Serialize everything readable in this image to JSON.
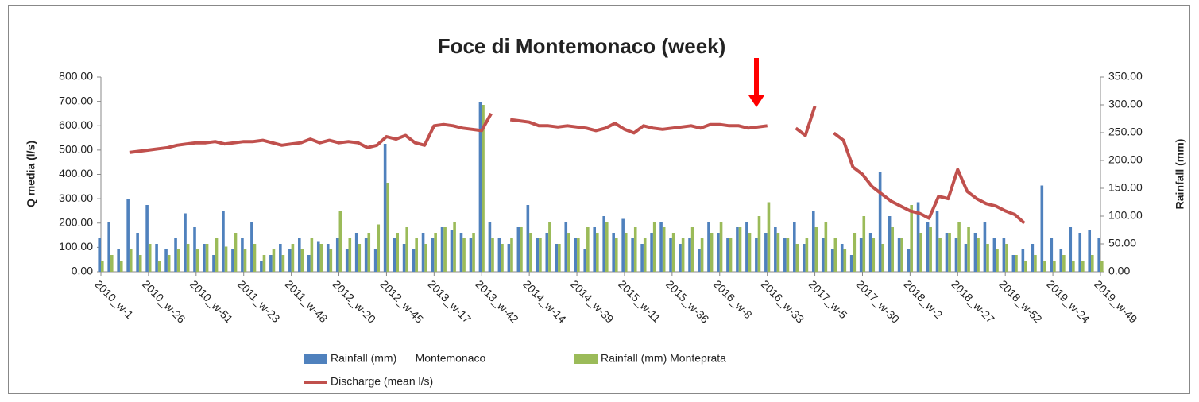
{
  "chart_data": {
    "type": "bar-line",
    "title": "Foce di Montemonaco (week)",
    "y_label": "Q media (l/s)",
    "y2_label": "Rainfall (mm)",
    "categories": [
      "2010_w-1",
      null,
      null,
      null,
      null,
      "2010_w-26",
      null,
      null,
      null,
      null,
      "2010_w-51",
      null,
      null,
      null,
      null,
      "2011_w-23",
      null,
      null,
      null,
      null,
      "2011_w-48",
      null,
      null,
      null,
      null,
      "2012_w-20",
      null,
      null,
      null,
      null,
      "2012_w-45",
      null,
      null,
      null,
      null,
      "2013_w-17",
      null,
      null,
      null,
      null,
      "2013_w-42",
      null,
      null,
      null,
      null,
      "2014_w-14",
      null,
      null,
      null,
      null,
      "2014_w-39",
      null,
      null,
      null,
      null,
      "2015_w-11",
      null,
      null,
      null,
      null,
      "2015_w-36",
      null,
      null,
      null,
      null,
      "2016_w-8",
      null,
      null,
      null,
      null,
      "2016_w-33",
      null,
      null,
      null,
      null,
      "2017_w-5",
      null,
      null,
      null,
      null,
      "2017_w-30",
      null,
      null,
      null,
      null,
      "2018_w-2",
      null,
      null,
      null,
      null,
      "2018_w-27",
      null,
      null,
      null,
      null,
      "2018_w-52",
      null,
      null,
      null,
      null,
      "2019_w-24",
      null,
      null,
      null,
      null,
      "2019_w-49"
    ],
    "series": [
      {
        "name": "Rainfall (mm)      Montemonaco",
        "color": "#4f81bd",
        "axis": "y2",
        "kind": "bar",
        "values": [
          60,
          90,
          40,
          130,
          70,
          120,
          50,
          40,
          60,
          105,
          80,
          50,
          30,
          110,
          40,
          60,
          90,
          20,
          30,
          50,
          40,
          60,
          30,
          55,
          50,
          60,
          40,
          70,
          60,
          40,
          230,
          60,
          50,
          40,
          70,
          60,
          80,
          75,
          70,
          60,
          305,
          90,
          60,
          50,
          80,
          120,
          60,
          70,
          50,
          90,
          60,
          40,
          80,
          100,
          70,
          95,
          60,
          50,
          70,
          90,
          60,
          50,
          60,
          40,
          90,
          70,
          60,
          80,
          90,
          60,
          70,
          80,
          60,
          90,
          50,
          110,
          60,
          40,
          50,
          30,
          60,
          70,
          180,
          100,
          60,
          40,
          125,
          90,
          110,
          70,
          60,
          50,
          70,
          90,
          60,
          60,
          30,
          40,
          50,
          155,
          60,
          40,
          80,
          70,
          75,
          60
        ]
      },
      {
        "name": "Rainfall (mm) Monteprata",
        "color": "#9bbb59",
        "axis": "y2",
        "kind": "bar",
        "values": [
          20,
          30,
          20,
          40,
          30,
          50,
          20,
          30,
          40,
          50,
          40,
          50,
          60,
          45,
          70,
          40,
          50,
          30,
          40,
          30,
          50,
          40,
          60,
          50,
          40,
          110,
          60,
          50,
          70,
          85,
          160,
          70,
          80,
          60,
          50,
          70,
          80,
          90,
          60,
          70,
          300,
          60,
          50,
          60,
          80,
          70,
          60,
          90,
          50,
          70,
          60,
          80,
          70,
          90,
          60,
          70,
          80,
          60,
          90,
          80,
          70,
          60,
          80,
          60,
          70,
          90,
          60,
          80,
          70,
          100,
          125,
          70,
          60,
          50,
          60,
          80,
          90,
          60,
          40,
          70,
          100,
          60,
          50,
          80,
          60,
          120,
          70,
          80,
          60,
          70,
          90,
          80,
          60,
          50,
          40,
          50,
          30,
          20,
          30,
          20,
          20,
          30,
          20,
          20,
          30,
          20
        ]
      },
      {
        "name": "Discharge (mean l/s)",
        "color": "#c0504d",
        "axis": "y",
        "kind": "line",
        "values": [
          null,
          null,
          null,
          490,
          495,
          500,
          505,
          510,
          520,
          525,
          530,
          530,
          535,
          525,
          530,
          535,
          535,
          540,
          530,
          520,
          525,
          530,
          545,
          530,
          540,
          530,
          535,
          530,
          510,
          520,
          555,
          545,
          560,
          530,
          520,
          600,
          605,
          600,
          590,
          585,
          580,
          650,
          null,
          625,
          620,
          615,
          600,
          600,
          595,
          600,
          595,
          590,
          580,
          590,
          610,
          585,
          570,
          600,
          590,
          585,
          590,
          595,
          600,
          590,
          605,
          605,
          600,
          600,
          590,
          595,
          600,
          null,
          null,
          590,
          560,
          680,
          null,
          570,
          540,
          430,
          400,
          350,
          320,
          290,
          270,
          250,
          240,
          220,
          310,
          300,
          420,
          330,
          300,
          280,
          270,
          250,
          235,
          200,
          null,
          null,
          null,
          null,
          null,
          null,
          null,
          null
        ]
      }
    ],
    "ylim": [
      0,
      800
    ],
    "yticks": [
      {
        "value": 0,
        "label": "0.00"
      },
      {
        "value": 100,
        "label": "100.00"
      },
      {
        "value": 200,
        "label": "200.00"
      },
      {
        "value": 300,
        "label": "300.00"
      },
      {
        "value": 400,
        "label": "400.00"
      },
      {
        "value": 500,
        "label": "500.00"
      },
      {
        "value": 600,
        "label": "600.00"
      },
      {
        "value": 700,
        "label": "700.00"
      },
      {
        "value": 800,
        "label": "800.00"
      }
    ],
    "y2lim": [
      0,
      350
    ],
    "y2ticks": [
      {
        "value": 0,
        "label": "0.00"
      },
      {
        "value": 50,
        "label": "50.00"
      },
      {
        "value": 100,
        "label": "100.00"
      },
      {
        "value": 150,
        "label": "150.00"
      },
      {
        "value": 200,
        "label": "200.00"
      },
      {
        "value": 250,
        "label": "250.00"
      },
      {
        "value": 300,
        "label": "300.00"
      },
      {
        "value": 350,
        "label": "350.00"
      }
    ],
    "grid": false
  }
}
